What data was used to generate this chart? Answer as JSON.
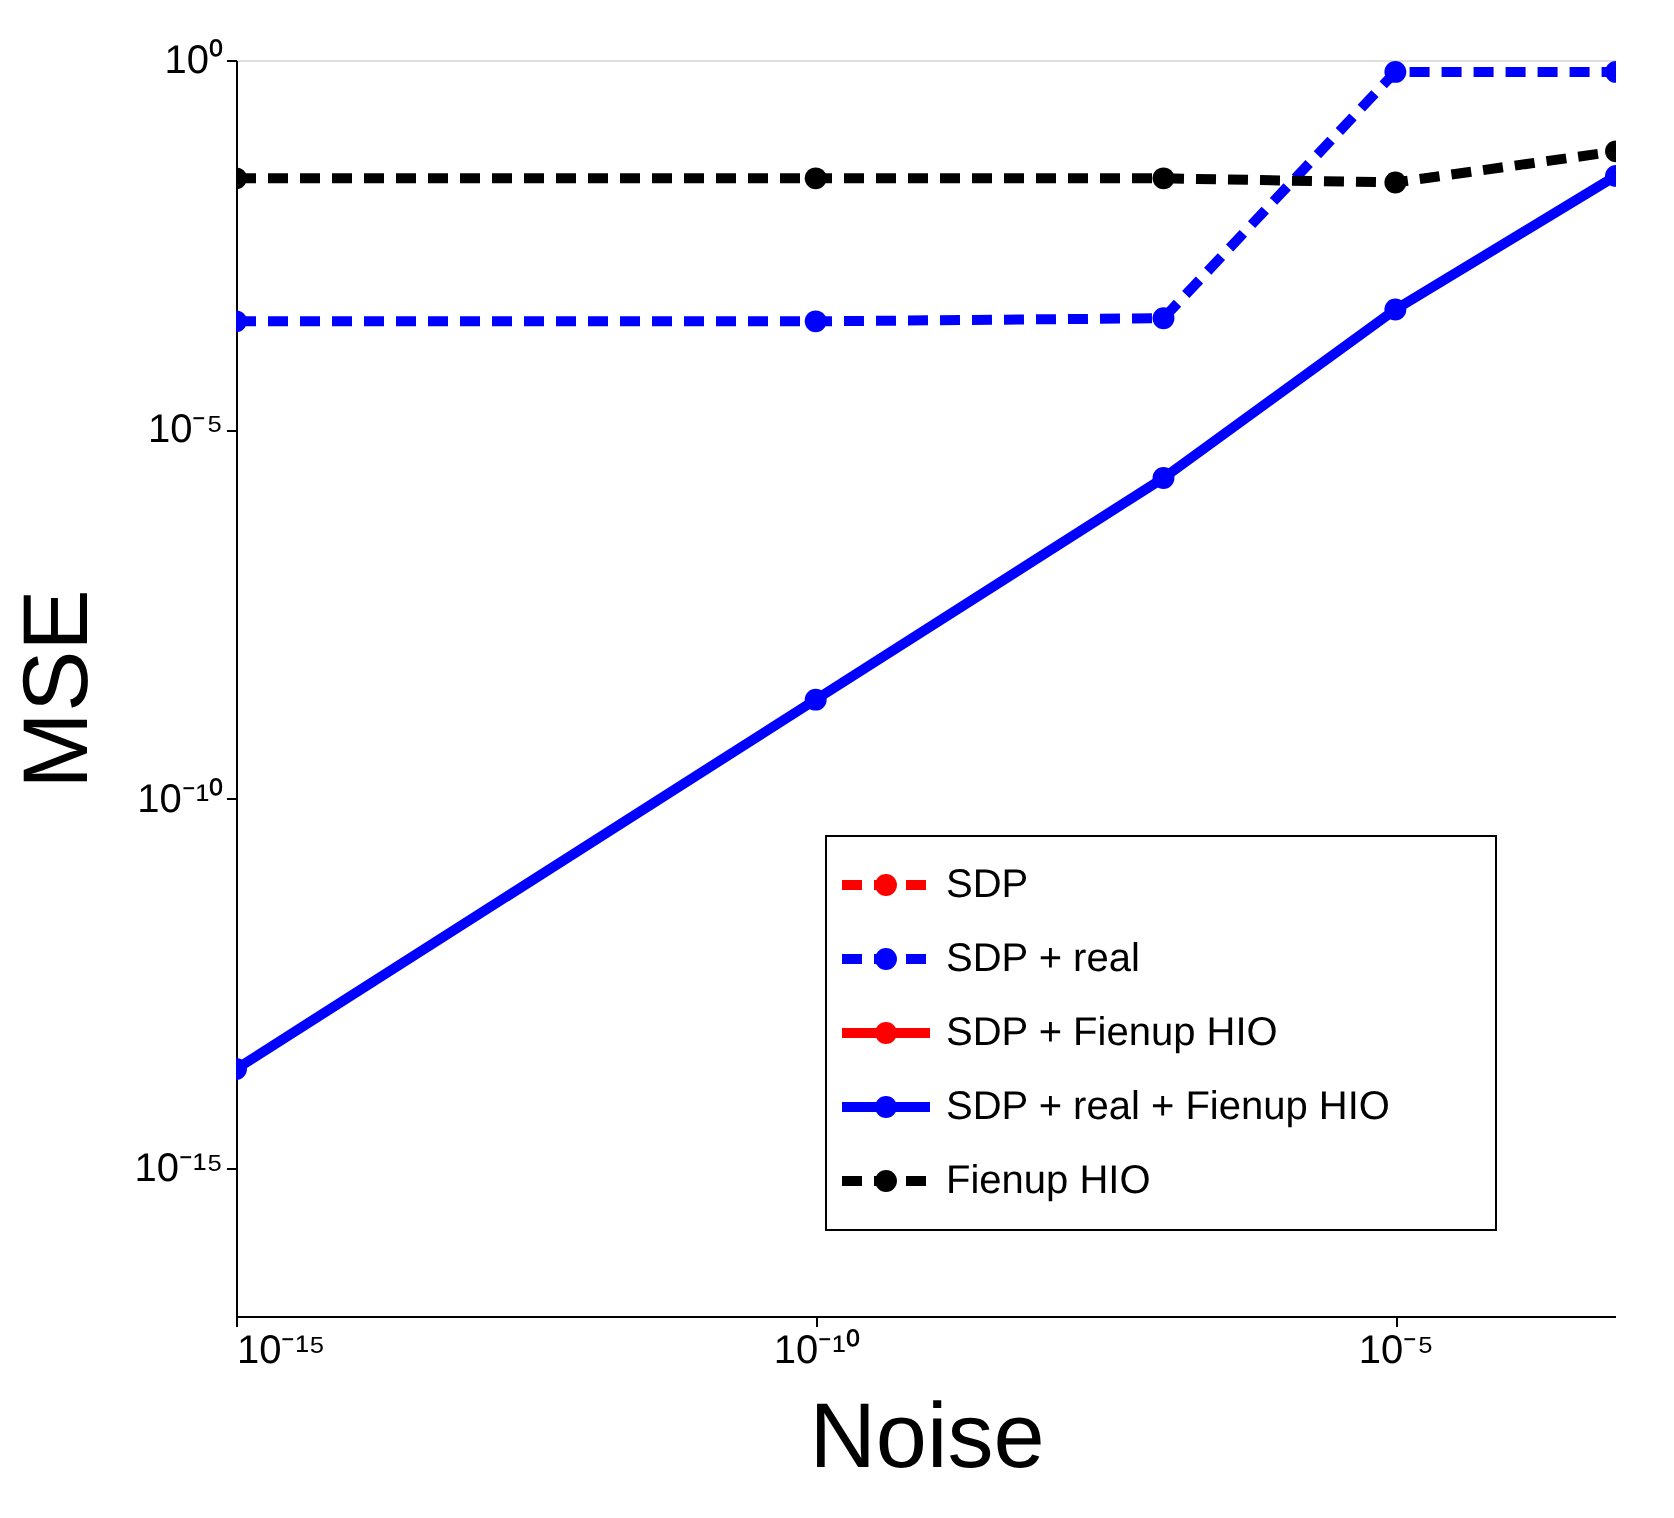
{
  "chart_data": {
    "type": "line",
    "xlabel": "Noise",
    "ylabel": "MSE",
    "log": "xy",
    "grid": false,
    "legend": "bottom right",
    "marker": "circle",
    "x": [
      1e-15,
      1e-10,
      1e-07,
      1e-05,
      0.0008
    ],
    "xlim": [
      1e-15,
      0.0008
    ],
    "xticks": [
      {
        "value": 1e-15,
        "label": "10⁻¹⁵"
      },
      {
        "value": 1e-10,
        "label": "10⁻¹⁰"
      },
      {
        "value": 1e-05,
        "label": "10⁻⁵"
      }
    ],
    "ylim": [
      1e-17,
      1
    ],
    "yticks": [
      {
        "value": 1e-15,
        "label": "10⁻¹⁵"
      },
      {
        "value": 1e-10,
        "label": "10⁻¹⁰"
      },
      {
        "value": 1e-05,
        "label": "10⁻⁵"
      },
      {
        "value": 1,
        "label": "10⁰"
      }
    ],
    "series": [
      {
        "name": "SDP",
        "color": "#ff0000",
        "line_style": "dashed",
        "values": [
          null,
          null,
          null,
          null,
          null
        ]
      },
      {
        "name": "SDP + real",
        "color": "#0000ff",
        "line_style": "dashed",
        "values": [
          0.00029,
          0.00029,
          0.00032,
          0.69,
          0.69
        ]
      },
      {
        "name": "SDP + Fienup HIO",
        "color": "#ff0000",
        "line_style": "solid",
        "values": [
          null,
          null,
          null,
          null,
          null
        ]
      },
      {
        "name": "SDP + real + Fienup HIO",
        "color": "#0000ff",
        "line_style": "solid",
        "values": [
          2.2e-14,
          2.2e-09,
          2.2e-06,
          0.00042,
          0.027
        ]
      },
      {
        "name": "Fienup HIO",
        "color": "#000000",
        "line_style": "dashed",
        "values": [
          0.025,
          0.025,
          0.025,
          0.022,
          0.058
        ]
      }
    ]
  }
}
